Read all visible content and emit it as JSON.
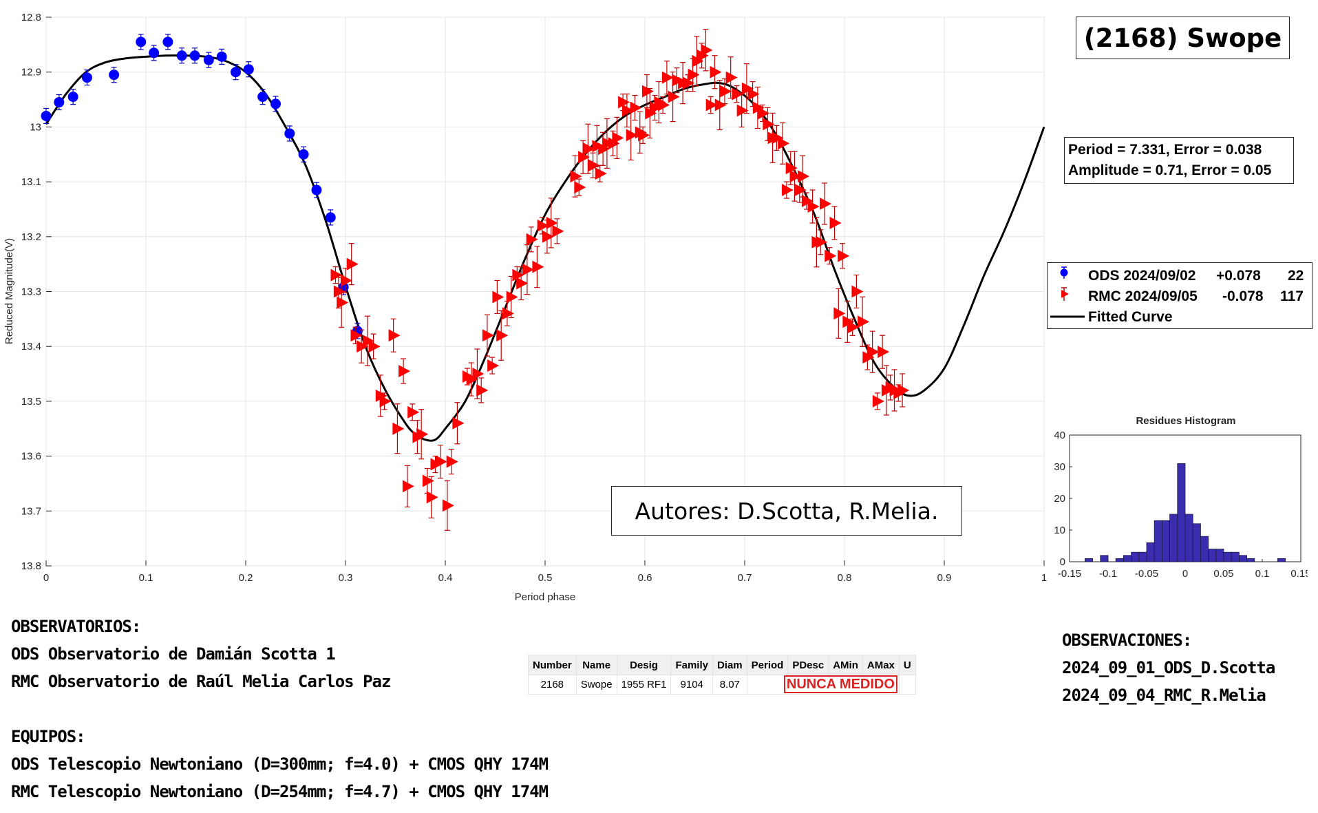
{
  "chart_data": [
    {
      "type": "scatter",
      "title": "(2168) Swope",
      "xlabel": "Period phase",
      "ylabel": "Reduced Magnitude(V)",
      "xlim": [
        0,
        1
      ],
      "ylim": [
        12.8,
        13.8
      ],
      "y_reversed": true,
      "grid": true,
      "legend_position": "right",
      "xticks": [
        "0",
        "0.1",
        "0.2",
        "0.3",
        "0.4",
        "0.5",
        "0.6",
        "0.7",
        "0.8",
        "0.9",
        "1"
      ],
      "yticks": [
        "12.8",
        "12.9",
        "13",
        "13.1",
        "13.2",
        "13.3",
        "13.4",
        "13.5",
        "13.6",
        "13.7",
        "13.8"
      ],
      "fit_text": {
        "period_line": "Period =  7.331, Error = 0.038",
        "amplitude_line": "Amplitude = 0.71, Error = 0.05"
      },
      "series": [
        {
          "name": "ODS 2024/09/02",
          "offset": "+0.078",
          "count": "22",
          "marker": "circle",
          "color": "#0000ff",
          "points": [
            [
              0.0,
              12.98
            ],
            [
              0.013,
              12.955
            ],
            [
              0.027,
              12.945
            ],
            [
              0.041,
              12.91
            ],
            [
              0.068,
              12.905
            ],
            [
              0.095,
              12.845
            ],
            [
              0.108,
              12.865
            ],
            [
              0.122,
              12.845
            ],
            [
              0.136,
              12.87
            ],
            [
              0.149,
              12.87
            ],
            [
              0.163,
              12.878
            ],
            [
              0.176,
              12.872
            ],
            [
              0.19,
              12.9
            ],
            [
              0.203,
              12.895
            ],
            [
              0.217,
              12.945
            ],
            [
              0.23,
              12.958
            ],
            [
              0.244,
              13.012
            ],
            [
              0.258,
              13.05
            ],
            [
              0.271,
              13.115
            ],
            [
              0.285,
              13.165
            ],
            [
              0.298,
              13.292
            ],
            [
              0.312,
              13.372
            ]
          ]
        },
        {
          "name": "RMC 2024/09/05",
          "offset": "-0.078",
          "count": "117",
          "marker": "triangle-right",
          "color": "#ff0000",
          "points": [
            [
              0.29,
              13.27
            ],
            [
              0.293,
              13.3
            ],
            [
              0.296,
              13.32
            ],
            [
              0.3,
              13.28
            ],
            [
              0.306,
              13.25
            ],
            [
              0.31,
              13.38
            ],
            [
              0.316,
              13.4
            ],
            [
              0.322,
              13.39
            ],
            [
              0.328,
              13.4
            ],
            [
              0.335,
              13.49
            ],
            [
              0.339,
              13.5
            ],
            [
              0.348,
              13.38
            ],
            [
              0.352,
              13.55
            ],
            [
              0.358,
              13.445
            ],
            [
              0.362,
              13.655
            ],
            [
              0.367,
              13.52
            ],
            [
              0.372,
              13.565
            ],
            [
              0.376,
              13.56
            ],
            [
              0.382,
              13.645
            ],
            [
              0.386,
              13.675
            ],
            [
              0.39,
              13.615
            ],
            [
              0.395,
              13.61
            ],
            [
              0.402,
              13.69
            ],
            [
              0.406,
              13.61
            ],
            [
              0.412,
              13.54
            ],
            [
              0.422,
              13.455
            ],
            [
              0.426,
              13.46
            ],
            [
              0.432,
              13.45
            ],
            [
              0.436,
              13.48
            ],
            [
              0.442,
              13.38
            ],
            [
              0.447,
              13.435
            ],
            [
              0.452,
              13.31
            ],
            [
              0.456,
              13.38
            ],
            [
              0.462,
              13.34
            ],
            [
              0.466,
              13.31
            ],
            [
              0.472,
              13.27
            ],
            [
              0.476,
              13.285
            ],
            [
              0.482,
              13.26
            ],
            [
              0.486,
              13.205
            ],
            [
              0.492,
              13.255
            ],
            [
              0.497,
              13.18
            ],
            [
              0.502,
              13.2
            ],
            [
              0.506,
              13.175
            ],
            [
              0.512,
              13.19
            ],
            [
              0.53,
              13.09
            ],
            [
              0.534,
              13.11
            ],
            [
              0.538,
              13.055
            ],
            [
              0.543,
              13.04
            ],
            [
              0.548,
              13.07
            ],
            [
              0.552,
              13.035
            ],
            [
              0.555,
              13.085
            ],
            [
              0.558,
              13.04
            ],
            [
              0.562,
              13.03
            ],
            [
              0.568,
              13.03
            ],
            [
              0.572,
              13.02
            ],
            [
              0.578,
              12.955
            ],
            [
              0.582,
              12.97
            ],
            [
              0.586,
              13.015
            ],
            [
              0.59,
              12.965
            ],
            [
              0.595,
              13.01
            ],
            [
              0.598,
              13.015
            ],
            [
              0.602,
              12.935
            ],
            [
              0.605,
              12.975
            ],
            [
              0.61,
              12.965
            ],
            [
              0.614,
              12.955
            ],
            [
              0.618,
              12.96
            ],
            [
              0.622,
              12.91
            ],
            [
              0.628,
              12.945
            ],
            [
              0.632,
              12.915
            ],
            [
              0.638,
              12.92
            ],
            [
              0.643,
              12.92
            ],
            [
              0.648,
              12.905
            ],
            [
              0.652,
              12.88
            ],
            [
              0.657,
              12.87
            ],
            [
              0.661,
              12.86
            ],
            [
              0.666,
              12.96
            ],
            [
              0.67,
              12.9
            ],
            [
              0.675,
              12.96
            ],
            [
              0.68,
              12.935
            ],
            [
              0.686,
              12.91
            ],
            [
              0.692,
              12.94
            ],
            [
              0.697,
              12.97
            ],
            [
              0.702,
              12.93
            ],
            [
              0.708,
              12.94
            ],
            [
              0.713,
              12.965
            ],
            [
              0.718,
              12.975
            ],
            [
              0.723,
              12.995
            ],
            [
              0.728,
              13.02
            ],
            [
              0.732,
              13.02
            ],
            [
              0.738,
              13.03
            ],
            [
              0.742,
              13.115
            ],
            [
              0.746,
              13.075
            ],
            [
              0.75,
              13.09
            ],
            [
              0.755,
              13.115
            ],
            [
              0.758,
              13.09
            ],
            [
              0.762,
              13.135
            ],
            [
              0.768,
              13.145
            ],
            [
              0.772,
              13.21
            ],
            [
              0.776,
              13.21
            ],
            [
              0.78,
              13.14
            ],
            [
              0.785,
              13.235
            ],
            [
              0.79,
              13.175
            ],
            [
              0.794,
              13.34
            ],
            [
              0.798,
              13.235
            ],
            [
              0.803,
              13.355
            ],
            [
              0.808,
              13.365
            ],
            [
              0.812,
              13.3
            ],
            [
              0.818,
              13.355
            ],
            [
              0.823,
              13.42
            ],
            [
              0.828,
              13.41
            ],
            [
              0.833,
              13.5
            ],
            [
              0.838,
              13.41
            ],
            [
              0.842,
              13.48
            ],
            [
              0.846,
              13.475
            ],
            [
              0.85,
              13.48
            ],
            [
              0.854,
              13.485
            ],
            [
              0.858,
              13.48
            ]
          ]
        },
        {
          "name": "Fitted Curve",
          "marker": "line",
          "color": "#000000",
          "points": [
            [
              0.0,
              12.995
            ],
            [
              0.02,
              12.94
            ],
            [
              0.04,
              12.9
            ],
            [
              0.06,
              12.882
            ],
            [
              0.08,
              12.875
            ],
            [
              0.1,
              12.872
            ],
            [
              0.12,
              12.87
            ],
            [
              0.14,
              12.87
            ],
            [
              0.16,
              12.872
            ],
            [
              0.18,
              12.88
            ],
            [
              0.2,
              12.9
            ],
            [
              0.22,
              12.94
            ],
            [
              0.24,
              13.0
            ],
            [
              0.26,
              13.07
            ],
            [
              0.28,
              13.17
            ],
            [
              0.3,
              13.29
            ],
            [
              0.32,
              13.4
            ],
            [
              0.34,
              13.48
            ],
            [
              0.36,
              13.54
            ],
            [
              0.37,
              13.56
            ],
            [
              0.38,
              13.57
            ],
            [
              0.39,
              13.57
            ],
            [
              0.4,
              13.55
            ],
            [
              0.42,
              13.5
            ],
            [
              0.44,
              13.42
            ],
            [
              0.46,
              13.33
            ],
            [
              0.48,
              13.24
            ],
            [
              0.5,
              13.16
            ],
            [
              0.52,
              13.1
            ],
            [
              0.54,
              13.05
            ],
            [
              0.56,
              13.01
            ],
            [
              0.58,
              12.98
            ],
            [
              0.6,
              12.96
            ],
            [
              0.62,
              12.945
            ],
            [
              0.64,
              12.93
            ],
            [
              0.66,
              12.922
            ],
            [
              0.675,
              12.92
            ],
            [
              0.69,
              12.93
            ],
            [
              0.71,
              12.96
            ],
            [
              0.73,
              13.01
            ],
            [
              0.75,
              13.08
            ],
            [
              0.77,
              13.16
            ],
            [
              0.79,
              13.26
            ],
            [
              0.81,
              13.35
            ],
            [
              0.83,
              13.43
            ],
            [
              0.85,
              13.475
            ],
            [
              0.865,
              13.49
            ],
            [
              0.88,
              13.48
            ],
            [
              0.9,
              13.44
            ],
            [
              0.92,
              13.36
            ],
            [
              0.94,
              13.27
            ],
            [
              0.96,
              13.19
            ],
            [
              0.98,
              13.1
            ],
            [
              1.0,
              13.0
            ]
          ]
        }
      ]
    },
    {
      "type": "bar",
      "title": "Residues Histogram",
      "xlim": [
        -0.15,
        0.15
      ],
      "ylim": [
        0,
        40
      ],
      "xticks": [
        "-0.15",
        "-0.1",
        "-0.05",
        "0",
        "0.05",
        "0.1",
        "0.15"
      ],
      "yticks": [
        "0",
        "10",
        "20",
        "30",
        "40"
      ],
      "color": "#3a2db0",
      "bin_width": 0.01,
      "bin_centers": [
        -0.125,
        -0.115,
        -0.105,
        -0.095,
        -0.085,
        -0.075,
        -0.065,
        -0.055,
        -0.045,
        -0.035,
        -0.025,
        -0.015,
        -0.005,
        0.005,
        0.015,
        0.025,
        0.035,
        0.045,
        0.055,
        0.065,
        0.075,
        0.085,
        0.095,
        0.105,
        0.115,
        0.125
      ],
      "values": [
        1,
        0,
        2,
        0,
        1,
        2,
        3,
        3,
        6,
        13,
        13,
        15,
        31,
        15,
        12,
        8,
        4,
        4,
        3,
        3,
        2,
        1,
        0,
        0,
        0,
        1
      ]
    }
  ],
  "authors": "Autores: D.Scotta, R.Melia.",
  "observatorios": {
    "heading": "OBSERVATORIOS:",
    "lines": [
      "ODS Observatorio de Damián Scotta 1",
      "RMC Observatorio de Raúl Melia Carlos Paz"
    ]
  },
  "equipos": {
    "heading": "EQUIPOS:",
    "lines": [
      "ODS Telescopio Newtoniano (D=300mm; f=4.0) + CMOS QHY 174M",
      "RMC Telescopio Newtoniano (D=254mm; f=4.7) + CMOS QHY 174M"
    ]
  },
  "observaciones": {
    "heading": "OBSERVACIONES:",
    "lines": [
      "2024_09_01_ODS_D.Scotta",
      "2024_09_04_RMC_R.Melia"
    ]
  },
  "info_table": {
    "headers": [
      "Number",
      "Name",
      "Desig",
      "Family",
      "Diam",
      "Period",
      "PDesc",
      "AMin",
      "AMax",
      "U"
    ],
    "row": [
      "2168",
      "Swope",
      "1955 RF1",
      "9104",
      "8.07"
    ],
    "note": "NUNCA MEDIDO"
  }
}
